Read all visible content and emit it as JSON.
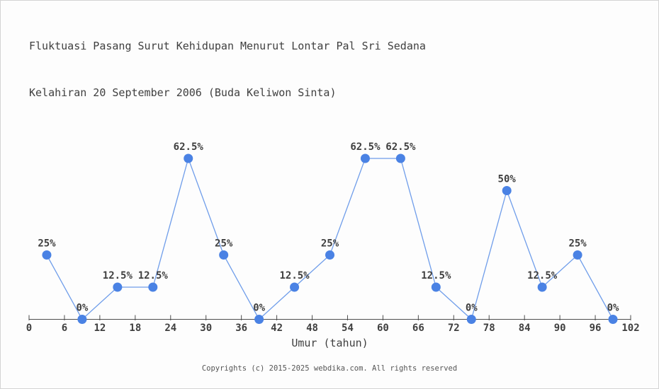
{
  "title": {
    "line1": "Fluktuasi Pasang Surut Kehidupan Menurut Lontar Pal Sri Sedana",
    "line2": "Kelahiran 20 September 2006 (Buda Keliwon Sinta)"
  },
  "footer": {
    "text": "Copyrights (c) 2015-2025 webdika.com. All rights reserved"
  },
  "chart_data": {
    "type": "line",
    "title": "Fluktuasi Pasang Surut Kehidupan Menurut Lontar Pal Sri Sedana Kelahiran 20 September 2006 (Buda Keliwon Sinta)",
    "xlabel": "Umur (tahun)",
    "ylabel": "",
    "x": [
      3,
      9,
      15,
      21,
      27,
      33,
      39,
      45,
      51,
      57,
      63,
      69,
      75,
      81,
      87,
      93,
      99
    ],
    "values": [
      25,
      0,
      12.5,
      12.5,
      62.5,
      25,
      0,
      12.5,
      25,
      62.5,
      62.5,
      12.5,
      0,
      50,
      12.5,
      25,
      0
    ],
    "point_labels": [
      "25%",
      "0%",
      "12.5%",
      "12.5%",
      "62.5%",
      "25%",
      "0%",
      "12.5%",
      "25%",
      "62.5%",
      "62.5%",
      "12.5%",
      "0%",
      "50%",
      "12.5%",
      "25%",
      "0%"
    ],
    "x_ticks": [
      0,
      6,
      12,
      18,
      24,
      30,
      36,
      42,
      48,
      54,
      60,
      66,
      72,
      78,
      84,
      90,
      96,
      102
    ],
    "xlim": [
      0,
      102
    ],
    "ylim": [
      0,
      62.5
    ],
    "grid": false,
    "legend": "none",
    "y_axis_shown": false,
    "colors": {
      "line": "#6f9dea",
      "marker": "#4a82e4",
      "axis": "#4d4d4d",
      "label_text": "#3f3f3f"
    }
  }
}
